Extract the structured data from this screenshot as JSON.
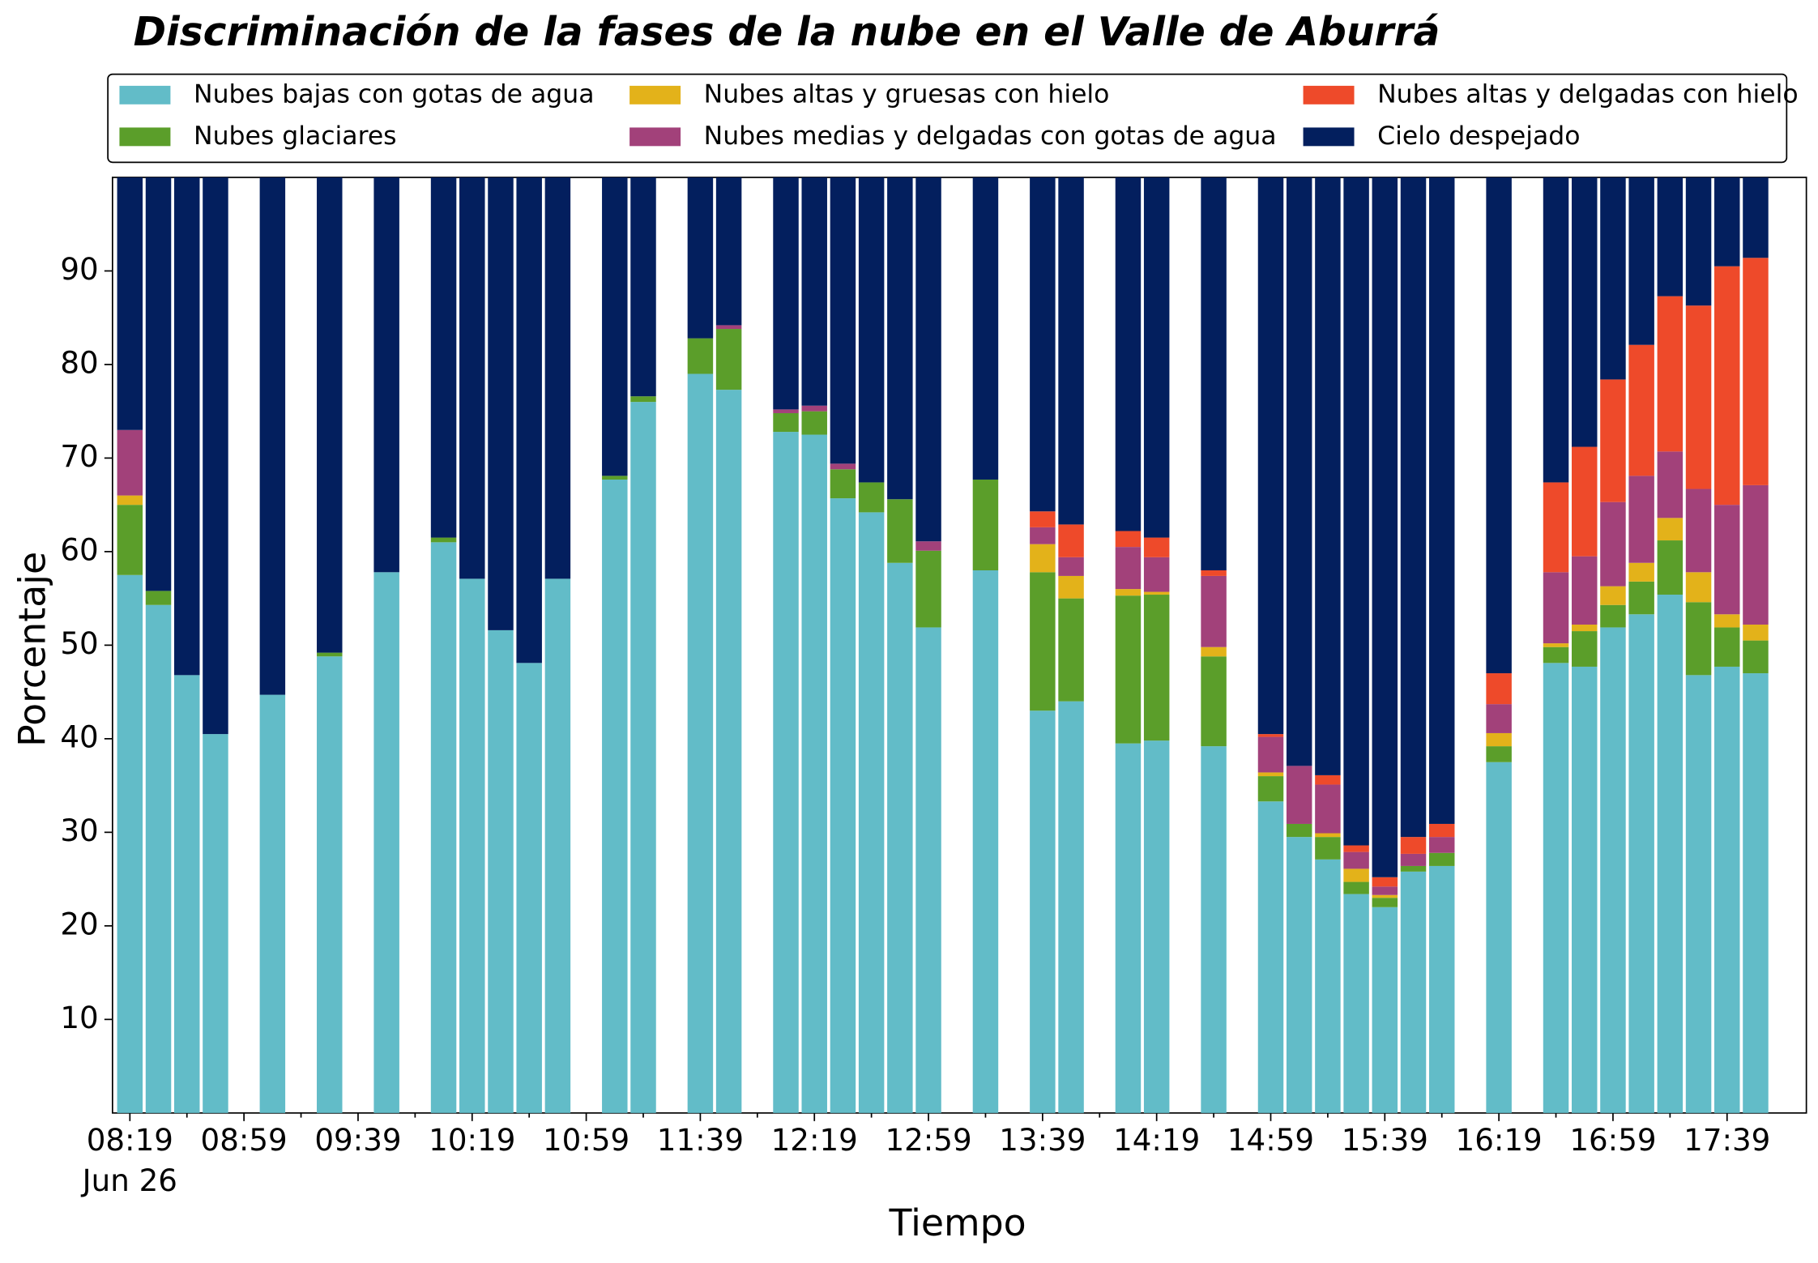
{
  "chart_data": {
    "type": "stacked_bar",
    "title": "Discriminación de la fases de la nube en el Valle de Aburrá",
    "xlabel": "Tiempo",
    "ylabel": "Porcentaje",
    "date": "Jun 26",
    "categories": [
      "08:19",
      null,
      null,
      null,
      "08:59",
      null,
      null,
      null,
      "09:39",
      null,
      null,
      null,
      "10:19",
      null,
      null,
      null,
      "10:59",
      null,
      null,
      null,
      "11:39",
      null,
      null,
      null,
      "12:19",
      null,
      null,
      null,
      "12:59",
      null,
      null,
      null,
      "13:39",
      null,
      null,
      null,
      "14:19",
      null,
      null,
      null,
      "14:59",
      null,
      null,
      null,
      "15:39",
      null,
      null,
      null,
      "16:19",
      null,
      null,
      null,
      "16:59",
      null,
      null,
      null,
      "17:39",
      null
    ],
    "ylim": [
      0,
      100
    ],
    "yticks": [
      10,
      20,
      30,
      40,
      50,
      60,
      70,
      80,
      90
    ],
    "legend": {
      "loc": "upper center",
      "ncol": 3
    },
    "series": [
      {
        "name": "Nubes bajas con gotas de agua",
        "color": "#62bcc8",
        "values": [
          57.5,
          54.3,
          46.8,
          40.5,
          null,
          44.7,
          null,
          48.8,
          null,
          57.8,
          null,
          61,
          57.1,
          51.6,
          48.1,
          57.1,
          null,
          67.7,
          76,
          null,
          79,
          77.3,
          null,
          72.8,
          72.5,
          65.7,
          64.2,
          58.8,
          51.9,
          null,
          58,
          null,
          43,
          44,
          null,
          39.5,
          39.8,
          null,
          39.2,
          null,
          33.3,
          29.5,
          27.1,
          23.4,
          22,
          25.8,
          26.4,
          null,
          37.5,
          null,
          48.1,
          47.7,
          51.9,
          53.3,
          55.4,
          46.8,
          47.7,
          47
        ]
      },
      {
        "name": "Nubes glaciares",
        "color": "#5b9e2a",
        "values": [
          7.5,
          1.5,
          0,
          0,
          null,
          0,
          null,
          0.4,
          null,
          0,
          null,
          0.5,
          0,
          0,
          0,
          0,
          null,
          0.4,
          0.6,
          null,
          3.8,
          6.5,
          null,
          2,
          2.5,
          3.1,
          3.2,
          6.8,
          8.2,
          null,
          9.7,
          null,
          14.8,
          11,
          null,
          15.8,
          15.6,
          null,
          9.6,
          null,
          2.7,
          1.4,
          2.4,
          1.3,
          1,
          0.6,
          1.4,
          null,
          1.7,
          null,
          1.7,
          3.8,
          2.4,
          3.5,
          5.8,
          7.8,
          4.2,
          3.5
        ]
      },
      {
        "name": "Nubes altas y gruesas con hielo",
        "color": "#e3b21a",
        "values": [
          1,
          0,
          0,
          0,
          null,
          0,
          null,
          0,
          null,
          0,
          null,
          0,
          0,
          0,
          0,
          0,
          null,
          0,
          0,
          null,
          0,
          0,
          null,
          0,
          0,
          0,
          0,
          0,
          0,
          null,
          0,
          null,
          3,
          2.4,
          null,
          0.7,
          0.3,
          null,
          1,
          null,
          0.4,
          0,
          0.4,
          1.4,
          0.3,
          0,
          0,
          null,
          1.4,
          null,
          0.4,
          0.7,
          2,
          2,
          2.4,
          3.2,
          1.4,
          1.7
        ]
      },
      {
        "name": "Nubes medias y delgadas con gotas de agua",
        "color": "#a2417a",
        "values": [
          7,
          0,
          0,
          0,
          null,
          0,
          null,
          0,
          null,
          0,
          null,
          0,
          0,
          0,
          0,
          0,
          null,
          0,
          0,
          null,
          0,
          0.4,
          null,
          0.4,
          0.6,
          0.6,
          0,
          0,
          1,
          null,
          0,
          null,
          1.8,
          2,
          null,
          4.5,
          3.7,
          null,
          7.6,
          null,
          3.8,
          6.2,
          5.2,
          1.8,
          0.9,
          1.3,
          1.7,
          null,
          3.1,
          null,
          7.6,
          7.3,
          9,
          9.3,
          7.1,
          8.9,
          11.7,
          14.9
        ]
      },
      {
        "name": "Nubes altas y delgadas con hielo",
        "color": "#ee4a2a",
        "values": [
          0,
          0,
          0,
          0,
          null,
          0,
          null,
          0,
          null,
          0,
          null,
          0,
          0,
          0,
          0,
          0,
          null,
          0,
          0,
          null,
          0,
          0,
          null,
          0,
          0,
          0,
          0,
          0,
          0,
          null,
          0,
          null,
          1.7,
          3.5,
          null,
          1.7,
          2.1,
          null,
          0.6,
          null,
          0.3,
          0,
          1,
          0.7,
          1,
          1.8,
          1.4,
          null,
          3.3,
          null,
          9.6,
          11.7,
          13.1,
          14,
          16.6,
          19.6,
          25.5,
          24.3
        ]
      },
      {
        "name": "Cielo despejado",
        "color": "#031f5e",
        "values": [
          27,
          44.2,
          53.2,
          59.5,
          null,
          55.3,
          null,
          50.8,
          null,
          42.2,
          null,
          38.5,
          42.9,
          48.4,
          51.9,
          42.9,
          null,
          31.9,
          23.4,
          null,
          17.2,
          15.8,
          null,
          24.8,
          24.4,
          30.6,
          32.6,
          34.4,
          38.9,
          null,
          32.3,
          null,
          35.7,
          37.1,
          null,
          37.8,
          38.5,
          null,
          42,
          null,
          59.5,
          62.9,
          63.9,
          71.4,
          74.8,
          70.5,
          69.1,
          null,
          53,
          null,
          32.6,
          28.8,
          21.6,
          17.9,
          12.7,
          13.7,
          9.5,
          8.6
        ]
      }
    ]
  }
}
